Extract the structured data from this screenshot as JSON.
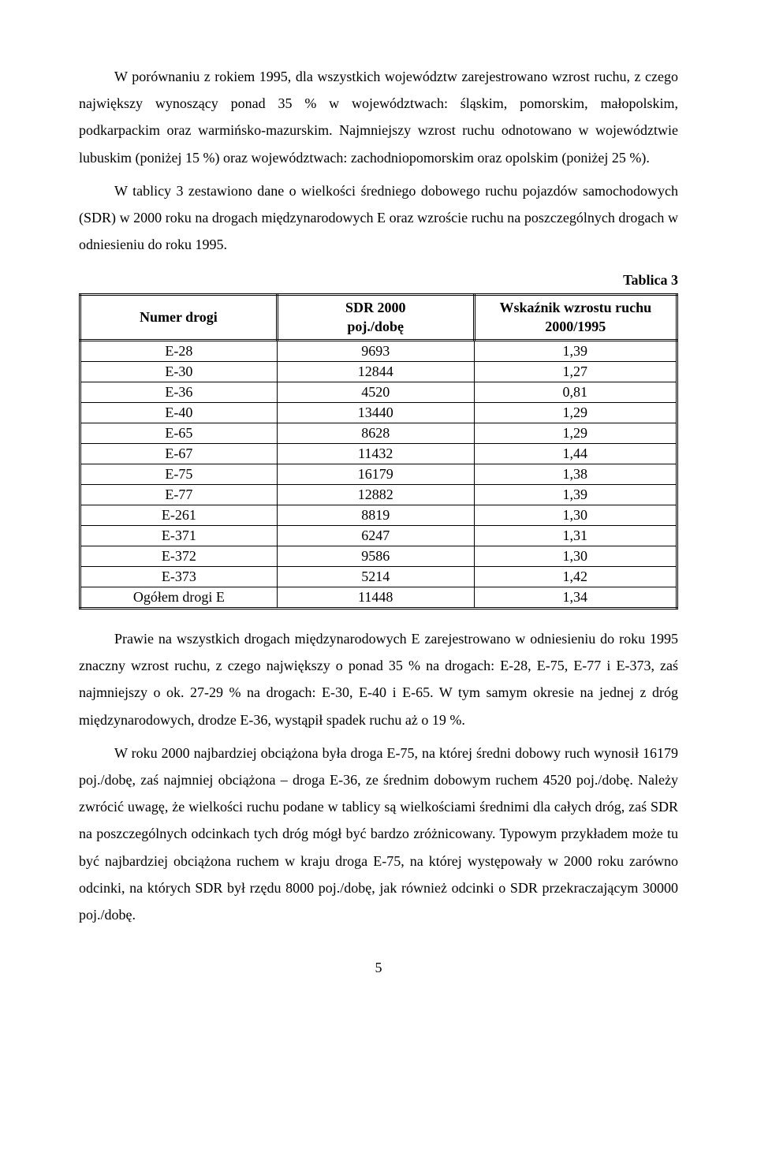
{
  "para1": "W porównaniu z rokiem 1995, dla wszystkich województw zarejestrowano wzrost ruchu, z czego największy wynoszący ponad 35 % w województwach: śląskim, pomorskim, małopolskim, podkarpackim oraz warmińsko-mazurskim. Najmniejszy wzrost ruchu odnotowano w województwie lubuskim (poniżej 15 %) oraz województwach: zachodniopomorskim oraz opolskim (poniżej 25 %).",
  "para2": "W tablicy 3 zestawiono dane o wielkości średniego dobowego ruchu pojazdów samochodowych (SDR) w 2000 roku na drogach międzynarodowych E oraz wzroście ruchu na poszczególnych drogach w odniesieniu do roku 1995.",
  "table_label": "Tablica 3",
  "table": {
    "columns": [
      "Numer drogi",
      "SDR 2000\npoj./dobę",
      "Wskaźnik wzrostu ruchu\n2000/1995"
    ],
    "col_widths": [
      "33%",
      "33%",
      "34%"
    ],
    "rows": [
      [
        "E-28",
        "9693",
        "1,39"
      ],
      [
        "E-30",
        "12844",
        "1,27"
      ],
      [
        "E-36",
        "4520",
        "0,81"
      ],
      [
        "E-40",
        "13440",
        "1,29"
      ],
      [
        "E-65",
        "8628",
        "1,29"
      ],
      [
        "E-67",
        "11432",
        "1,44"
      ],
      [
        "E-75",
        "16179",
        "1,38"
      ],
      [
        "E-77",
        "12882",
        "1,39"
      ],
      [
        "E-261",
        "8819",
        "1,30"
      ],
      [
        "E-371",
        "6247",
        "1,31"
      ],
      [
        "E-372",
        "9586",
        "1,30"
      ],
      [
        "E-373",
        "5214",
        "1,42"
      ],
      [
        "Ogółem drogi E",
        "11448",
        "1,34"
      ]
    ]
  },
  "para3": "Prawie na wszystkich drogach międzynarodowych E zarejestrowano w odniesieniu do roku 1995 znaczny wzrost ruchu, z czego największy o ponad 35 % na drogach: E-28, E-75, E-77 i E-373, zaś najmniejszy o ok. 27-29 % na drogach: E-30, E-40 i E-65. W tym samym okresie na jednej z dróg międzynarodowych, drodze E-36, wystąpił spadek ruchu aż o 19 %.",
  "para4": "W roku 2000 najbardziej obciążona była droga E-75, na której średni dobowy ruch wynosił 16179 poj./dobę, zaś najmniej obciążona – droga E-36, ze średnim dobowym ruchem 4520 poj./dobę. Należy zwrócić uwagę, że wielkości ruchu podane w tablicy są wielkościami średnimi dla całych dróg, zaś SDR na poszczególnych odcinkach tych dróg mógł być bardzo zróżnicowany. Typowym przykładem może tu być najbardziej obciążona ruchem w kraju droga E-75, na której występowały w 2000 roku zarówno odcinki, na których SDR był rzędu 8000 poj./dobę, jak również odcinki o SDR przekraczającym 30000 poj./dobę.",
  "page_number": "5"
}
